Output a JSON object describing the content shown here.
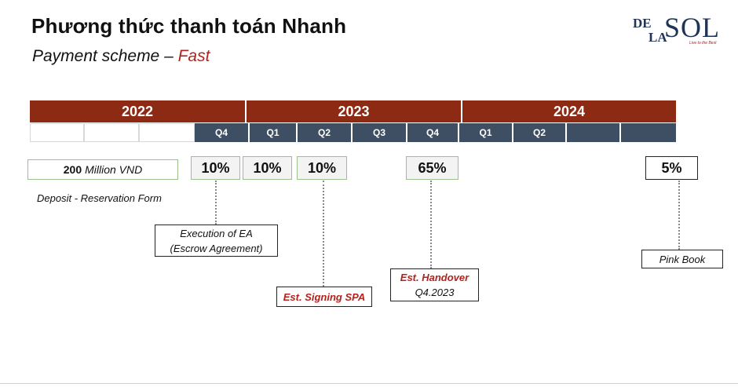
{
  "header": {
    "title": "Phương thức thanh toán Nhanh",
    "subtitle_prefix": "Payment scheme – ",
    "subtitle_accent": "Fast"
  },
  "logo": {
    "de": "DE",
    "la": "LA",
    "sol": "SOL",
    "tagline": "Live to the Best"
  },
  "timeline": {
    "years": [
      "2022",
      "2023",
      "2024"
    ],
    "quarters": [
      "",
      "",
      "",
      "Q4",
      "Q1",
      "Q2",
      "Q3",
      "Q4",
      "Q1",
      "Q2",
      "",
      ""
    ]
  },
  "deposit": {
    "amount": "200",
    "unit": "Million VND",
    "label": "Deposit - Reservation Form"
  },
  "payments": [
    "10%",
    "10%",
    "10%",
    "65%",
    "5%"
  ],
  "milestones": {
    "ea": {
      "line1": "Execution of EA",
      "line2": "(Escrow Agreement)"
    },
    "spa": {
      "line1": "Est. Signing SPA"
    },
    "handover": {
      "line1": "Est. Handover",
      "line2": "Q4.2023"
    },
    "pinkbook": {
      "line1": "Pink Book"
    }
  },
  "colors": {
    "year_bar": "#8c2a14",
    "quarter_fill": "#3f4f63",
    "accent_red": "#b3221c",
    "box_border_green": "#9cc08a"
  }
}
